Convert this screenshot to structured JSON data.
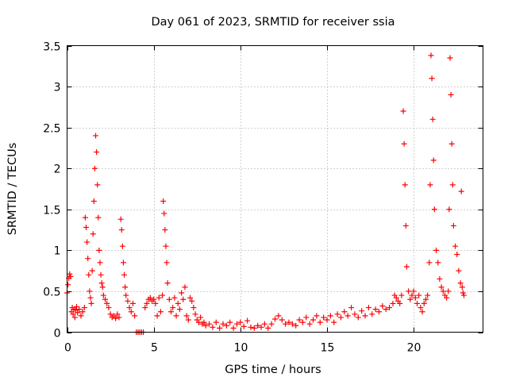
{
  "chart_data": {
    "type": "scatter",
    "title": "Day 061 of 2023, SRMTID for receiver ssia",
    "xlabel": "GPS time / hours",
    "ylabel": "SRMTID / TECUs",
    "xlim": [
      0,
      24
    ],
    "ylim": [
      0,
      3.5
    ],
    "xticks": [
      0,
      5,
      10,
      15,
      20
    ],
    "xtick_labels": [
      "0",
      "5",
      "10",
      "15",
      "20"
    ],
    "yticks": [
      0,
      0.5,
      1,
      1.5,
      2,
      2.5,
      3,
      3.5
    ],
    "ytick_labels": [
      "0",
      "0.5",
      "1",
      "1.5",
      "2",
      "2.5",
      "3",
      "3.5"
    ],
    "grid": true,
    "marker": "+",
    "color": "#ff0000",
    "series": [
      {
        "name": "SRMTID",
        "points": [
          [
            0.0,
            0.48
          ],
          [
            0.05,
            0.58
          ],
          [
            0.1,
            0.66
          ],
          [
            0.15,
            0.71
          ],
          [
            0.2,
            0.68
          ],
          [
            0.25,
            0.25
          ],
          [
            0.3,
            0.3
          ],
          [
            0.35,
            0.22
          ],
          [
            0.4,
            0.28
          ],
          [
            0.45,
            0.18
          ],
          [
            0.5,
            0.27
          ],
          [
            0.55,
            0.31
          ],
          [
            0.6,
            0.24
          ],
          [
            0.7,
            0.28
          ],
          [
            0.8,
            0.2
          ],
          [
            0.9,
            0.25
          ],
          [
            1.0,
            0.3
          ],
          [
            1.05,
            1.4
          ],
          [
            1.1,
            1.28
          ],
          [
            1.15,
            1.1
          ],
          [
            1.2,
            0.9
          ],
          [
            1.25,
            0.7
          ],
          [
            1.3,
            0.5
          ],
          [
            1.35,
            0.42
          ],
          [
            1.4,
            0.35
          ],
          [
            1.45,
            0.75
          ],
          [
            1.5,
            1.2
          ],
          [
            1.55,
            1.6
          ],
          [
            1.6,
            2.0
          ],
          [
            1.65,
            2.4
          ],
          [
            1.7,
            2.2
          ],
          [
            1.75,
            1.8
          ],
          [
            1.8,
            1.4
          ],
          [
            1.85,
            1.0
          ],
          [
            1.9,
            0.85
          ],
          [
            1.95,
            0.7
          ],
          [
            2.0,
            0.6
          ],
          [
            2.05,
            0.55
          ],
          [
            2.1,
            0.45
          ],
          [
            2.2,
            0.4
          ],
          [
            2.3,
            0.35
          ],
          [
            2.4,
            0.3
          ],
          [
            2.5,
            0.22
          ],
          [
            2.6,
            0.18
          ],
          [
            2.7,
            0.2
          ],
          [
            2.8,
            0.17
          ],
          [
            2.9,
            0.22
          ],
          [
            3.0,
            0.18
          ],
          [
            3.1,
            1.38
          ],
          [
            3.15,
            1.25
          ],
          [
            3.2,
            1.05
          ],
          [
            3.25,
            0.85
          ],
          [
            3.3,
            0.7
          ],
          [
            3.35,
            0.55
          ],
          [
            3.4,
            0.45
          ],
          [
            3.5,
            0.38
          ],
          [
            3.6,
            0.3
          ],
          [
            3.7,
            0.25
          ],
          [
            3.8,
            0.35
          ],
          [
            3.9,
            0.2
          ],
          [
            4.0,
            0.0
          ],
          [
            4.1,
            0.0
          ],
          [
            4.2,
            0.0
          ],
          [
            4.3,
            0.0
          ],
          [
            4.4,
            0.0
          ],
          [
            4.5,
            0.3
          ],
          [
            4.6,
            0.35
          ],
          [
            4.7,
            0.4
          ],
          [
            4.8,
            0.42
          ],
          [
            4.9,
            0.38
          ],
          [
            5.0,
            0.4
          ],
          [
            5.1,
            0.35
          ],
          [
            5.2,
            0.2
          ],
          [
            5.3,
            0.42
          ],
          [
            5.4,
            0.25
          ],
          [
            5.5,
            0.45
          ],
          [
            5.55,
            1.6
          ],
          [
            5.6,
            1.45
          ],
          [
            5.65,
            1.25
          ],
          [
            5.7,
            1.05
          ],
          [
            5.75,
            0.85
          ],
          [
            5.8,
            0.6
          ],
          [
            5.9,
            0.4
          ],
          [
            6.0,
            0.25
          ],
          [
            6.1,
            0.3
          ],
          [
            6.2,
            0.42
          ],
          [
            6.3,
            0.2
          ],
          [
            6.4,
            0.35
          ],
          [
            6.5,
            0.28
          ],
          [
            6.6,
            0.48
          ],
          [
            6.7,
            0.4
          ],
          [
            6.8,
            0.55
          ],
          [
            6.9,
            0.2
          ],
          [
            7.0,
            0.15
          ],
          [
            7.1,
            0.42
          ],
          [
            7.2,
            0.38
          ],
          [
            7.3,
            0.3
          ],
          [
            7.4,
            0.22
          ],
          [
            7.5,
            0.15
          ],
          [
            7.6,
            0.12
          ],
          [
            7.7,
            0.18
          ],
          [
            7.8,
            0.1
          ],
          [
            7.9,
            0.12
          ],
          [
            8.0,
            0.08
          ],
          [
            8.2,
            0.1
          ],
          [
            8.4,
            0.06
          ],
          [
            8.6,
            0.12
          ],
          [
            8.8,
            0.05
          ],
          [
            9.0,
            0.1
          ],
          [
            9.2,
            0.08
          ],
          [
            9.4,
            0.12
          ],
          [
            9.6,
            0.05
          ],
          [
            9.8,
            0.1
          ],
          [
            10.0,
            0.12
          ],
          [
            10.2,
            0.07
          ],
          [
            10.4,
            0.14
          ],
          [
            10.6,
            0.06
          ],
          [
            10.8,
            0.05
          ],
          [
            11.0,
            0.08
          ],
          [
            11.2,
            0.06
          ],
          [
            11.4,
            0.1
          ],
          [
            11.6,
            0.05
          ],
          [
            11.8,
            0.1
          ],
          [
            12.0,
            0.16
          ],
          [
            12.2,
            0.2
          ],
          [
            12.4,
            0.15
          ],
          [
            12.6,
            0.1
          ],
          [
            12.8,
            0.12
          ],
          [
            13.0,
            0.1
          ],
          [
            13.2,
            0.08
          ],
          [
            13.4,
            0.15
          ],
          [
            13.6,
            0.12
          ],
          [
            13.8,
            0.18
          ],
          [
            14.0,
            0.1
          ],
          [
            14.2,
            0.15
          ],
          [
            14.4,
            0.2
          ],
          [
            14.6,
            0.12
          ],
          [
            14.8,
            0.18
          ],
          [
            15.0,
            0.15
          ],
          [
            15.2,
            0.2
          ],
          [
            15.4,
            0.12
          ],
          [
            15.6,
            0.22
          ],
          [
            15.8,
            0.18
          ],
          [
            16.0,
            0.25
          ],
          [
            16.2,
            0.2
          ],
          [
            16.4,
            0.3
          ],
          [
            16.6,
            0.22
          ],
          [
            16.8,
            0.18
          ],
          [
            17.0,
            0.26
          ],
          [
            17.2,
            0.2
          ],
          [
            17.4,
            0.3
          ],
          [
            17.6,
            0.22
          ],
          [
            17.8,
            0.28
          ],
          [
            18.0,
            0.25
          ],
          [
            18.2,
            0.32
          ],
          [
            18.4,
            0.28
          ],
          [
            18.6,
            0.3
          ],
          [
            18.8,
            0.35
          ],
          [
            18.9,
            0.45
          ],
          [
            19.0,
            0.42
          ],
          [
            19.1,
            0.38
          ],
          [
            19.2,
            0.35
          ],
          [
            19.3,
            0.45
          ],
          [
            19.4,
            2.7
          ],
          [
            19.45,
            2.3
          ],
          [
            19.5,
            1.8
          ],
          [
            19.55,
            1.3
          ],
          [
            19.6,
            0.8
          ],
          [
            19.7,
            0.5
          ],
          [
            19.8,
            0.4
          ],
          [
            19.9,
            0.45
          ],
          [
            20.0,
            0.5
          ],
          [
            20.1,
            0.42
          ],
          [
            20.2,
            0.35
          ],
          [
            20.3,
            0.45
          ],
          [
            20.4,
            0.3
          ],
          [
            20.5,
            0.25
          ],
          [
            20.6,
            0.35
          ],
          [
            20.7,
            0.4
          ],
          [
            20.8,
            0.45
          ],
          [
            20.9,
            0.85
          ],
          [
            20.95,
            1.8
          ],
          [
            21.0,
            3.38
          ],
          [
            21.05,
            3.1
          ],
          [
            21.1,
            2.6
          ],
          [
            21.15,
            2.1
          ],
          [
            21.2,
            1.5
          ],
          [
            21.3,
            1.0
          ],
          [
            21.4,
            0.85
          ],
          [
            21.5,
            0.65
          ],
          [
            21.6,
            0.55
          ],
          [
            21.7,
            0.5
          ],
          [
            21.8,
            0.45
          ],
          [
            21.9,
            0.42
          ],
          [
            22.0,
            0.5
          ],
          [
            22.05,
            1.5
          ],
          [
            22.1,
            3.35
          ],
          [
            22.15,
            2.9
          ],
          [
            22.2,
            2.3
          ],
          [
            22.25,
            1.8
          ],
          [
            22.3,
            1.3
          ],
          [
            22.4,
            1.05
          ],
          [
            22.5,
            0.95
          ],
          [
            22.6,
            0.75
          ],
          [
            22.7,
            0.6
          ],
          [
            22.75,
            1.72
          ],
          [
            22.8,
            0.55
          ],
          [
            22.85,
            0.48
          ],
          [
            22.9,
            0.45
          ]
        ]
      }
    ]
  }
}
